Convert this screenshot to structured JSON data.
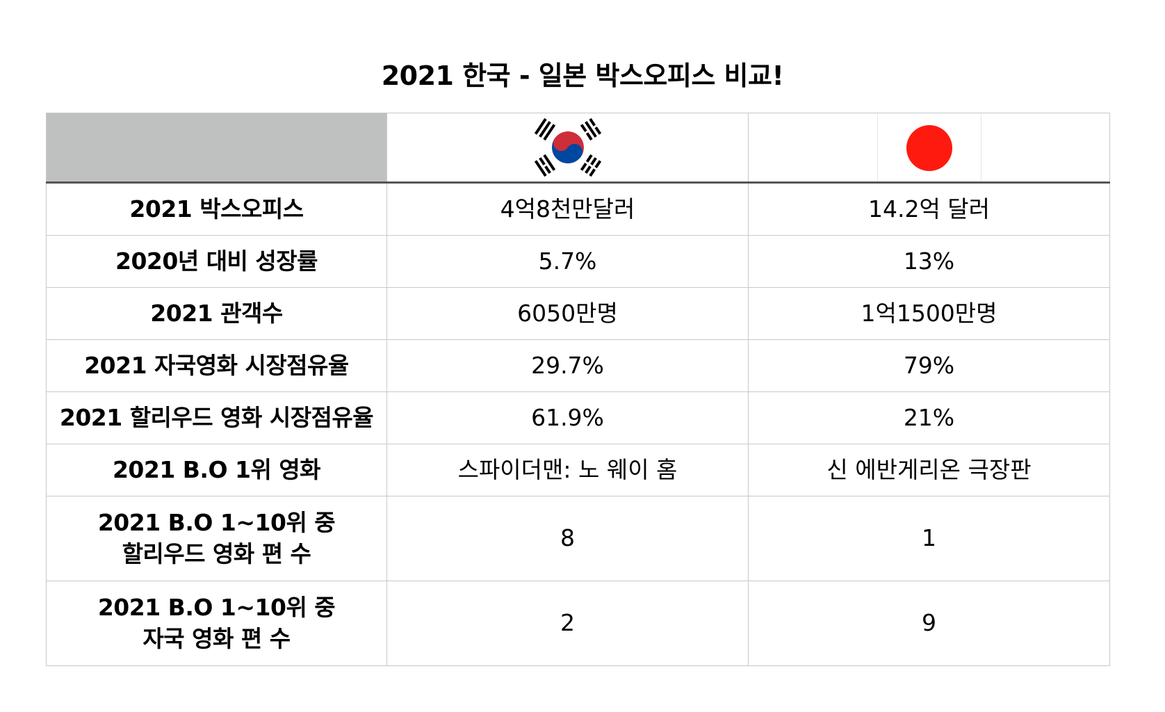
{
  "title": "2021 한국 - 일본 박스오피스 비교!",
  "flags": {
    "korea": "taegukgi-flag-icon",
    "japan": "hinomaru-flag-icon"
  },
  "colors": {
    "header_corner": "#bfc1c0",
    "korea_red": "#cd2e3a",
    "korea_blue": "#0047a0",
    "japan_red": "#ff1a0f",
    "grid_line": "#c8c8c8"
  },
  "rows": [
    {
      "label": "2021 박스오피스",
      "korea": "4억8천만달러",
      "japan": "14.2억 달러"
    },
    {
      "label": "2020년 대비 성장률",
      "korea": "5.7%",
      "japan": "13%"
    },
    {
      "label": "2021 관객수",
      "korea": "6050만명",
      "japan": "1억1500만명"
    },
    {
      "label": "2021 자국영화 시장점유율",
      "korea": "29.7%",
      "japan": "79%"
    },
    {
      "label": "2021 할리우드 영화 시장점유율",
      "korea": "61.9%",
      "japan": "21%"
    },
    {
      "label": "2021 B.O 1위 영화",
      "korea": "스파이더맨: 노 웨이 홈",
      "japan": "신 에반게리온 극장판"
    },
    {
      "label_line1": "2021 B.O 1~10위 중",
      "label_line2": "할리우드 영화 편 수",
      "korea": "8",
      "japan": "1"
    },
    {
      "label_line1": "2021 B.O 1~10위 중",
      "label_line2": "자국 영화 편 수",
      "korea": "2",
      "japan": "9"
    }
  ]
}
